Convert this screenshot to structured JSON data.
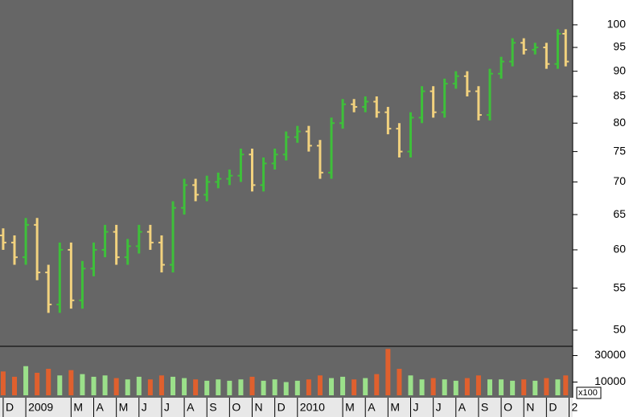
{
  "chart_data": {
    "type": "ohlc",
    "x": [
      0,
      0.5,
      1,
      1.5,
      2,
      2.5,
      3,
      3.5,
      4,
      4.5,
      5,
      5.5,
      6,
      6.5,
      7,
      7.5,
      8,
      8.5,
      9,
      9.5,
      10,
      10.5,
      11,
      11.5,
      12,
      12.5,
      13,
      13.5,
      14,
      14.5,
      15,
      15.5,
      16,
      16.5,
      17,
      17.5,
      18,
      18.5,
      19,
      19.5,
      20,
      20.5,
      21,
      21.5,
      22,
      22.5,
      23,
      23.5,
      24,
      24.5,
      24.85
    ],
    "open": [
      62,
      61,
      59,
      63.5,
      57,
      53,
      60,
      53.5,
      57.5,
      60,
      62.5,
      59,
      60.5,
      62.5,
      61,
      58,
      66,
      69.5,
      68,
      70,
      70.5,
      71,
      74.5,
      69.5,
      73,
      74.5,
      77.5,
      78.5,
      76,
      71.5,
      80,
      83.5,
      83,
      84,
      82,
      79,
      75,
      81,
      86,
      82,
      87.5,
      89,
      86,
      81.5,
      89.5,
      92,
      96,
      94.5,
      95,
      91.5,
      98
    ],
    "high": [
      63,
      62,
      64.5,
      64.5,
      58,
      61,
      61,
      58.5,
      61,
      63.5,
      63.5,
      61.5,
      63.5,
      63.5,
      62,
      67,
      70.5,
      70.5,
      71,
      71.5,
      72,
      75.5,
      75.5,
      74,
      75.5,
      78.5,
      79.5,
      79.5,
      77,
      81,
      84.5,
      84.5,
      85,
      85,
      83,
      80,
      82,
      87,
      87,
      88.5,
      90,
      90,
      87,
      90.5,
      93,
      97,
      97,
      96,
      96,
      99,
      99
    ],
    "low": [
      60,
      58,
      58,
      56,
      52,
      52,
      52.5,
      52.5,
      56.5,
      59,
      58,
      58,
      59.5,
      60,
      57,
      57,
      65,
      67,
      67,
      69,
      69.5,
      70,
      68.5,
      68.5,
      72,
      73.5,
      76.5,
      75,
      70.5,
      70.5,
      79,
      82,
      82,
      81,
      78,
      74,
      74,
      80,
      81,
      81,
      86.5,
      85,
      80.5,
      80.5,
      88.5,
      91,
      93.5,
      93.5,
      90.5,
      90.5,
      91
    ],
    "close": [
      61,
      59,
      63.5,
      57,
      53,
      60,
      53.5,
      57.5,
      60,
      62.5,
      59,
      60.5,
      62.5,
      61,
      58,
      66,
      69.5,
      68,
      70,
      70.5,
      71,
      74.5,
      69.5,
      73,
      74.5,
      77.5,
      78.5,
      76,
      71.5,
      80,
      83.5,
      83,
      84,
      82,
      79,
      75,
      81,
      86,
      82,
      87.5,
      89,
      86,
      81.5,
      89.5,
      92,
      96,
      94.5,
      95,
      91.5,
      98,
      92
    ],
    "up_color": "#3ec03a",
    "down_color": "#f2d27e",
    "background": "#666666",
    "log_scale": true,
    "ylim": [
      48.2,
      105.8
    ],
    "yticks": [
      50,
      55,
      60,
      65,
      70,
      75,
      80,
      85,
      90,
      95,
      100
    ],
    "xlim": [
      -0.14,
      25.16
    ],
    "xticks": [
      {
        "value": 0,
        "label": "D"
      },
      {
        "value": 1,
        "label": "2009"
      },
      {
        "value": 3,
        "label": "M"
      },
      {
        "value": 4,
        "label": "A"
      },
      {
        "value": 5,
        "label": "M"
      },
      {
        "value": 6,
        "label": "J"
      },
      {
        "value": 7,
        "label": "J"
      },
      {
        "value": 8,
        "label": "A"
      },
      {
        "value": 9,
        "label": "S"
      },
      {
        "value": 10,
        "label": "O"
      },
      {
        "value": 11,
        "label": "N"
      },
      {
        "value": 12,
        "label": "D"
      },
      {
        "value": 13,
        "label": "2010"
      },
      {
        "value": 15,
        "label": "M"
      },
      {
        "value": 16,
        "label": "A"
      },
      {
        "value": 17,
        "label": "M"
      },
      {
        "value": 18,
        "label": "J"
      },
      {
        "value": 19,
        "label": "J"
      },
      {
        "value": 20,
        "label": "A"
      },
      {
        "value": 21,
        "label": "S"
      },
      {
        "value": 22,
        "label": "O"
      },
      {
        "value": 23,
        "label": "N"
      },
      {
        "value": 24,
        "label": "D"
      },
      {
        "value": 25,
        "label": "2"
      }
    ],
    "volume": {
      "values": [
        18000,
        14000,
        22000,
        17000,
        20000,
        15000,
        19000,
        16000,
        14000,
        15000,
        13000,
        12000,
        14000,
        12000,
        15000,
        14000,
        13000,
        12000,
        11000,
        12000,
        11000,
        12000,
        14000,
        11000,
        12000,
        10000,
        11000,
        12000,
        15000,
        13000,
        14000,
        12000,
        13000,
        16000,
        35000,
        20000,
        15000,
        12000,
        13000,
        12000,
        11000,
        13000,
        15000,
        12000,
        12000,
        11000,
        12000,
        11000,
        13000,
        12000,
        15000
      ],
      "ylim": [
        0,
        37000
      ],
      "yticks": [
        30000,
        10000
      ],
      "unit_label": "x100",
      "up_color": "#9be08a",
      "down_color": "#e0602e"
    }
  }
}
